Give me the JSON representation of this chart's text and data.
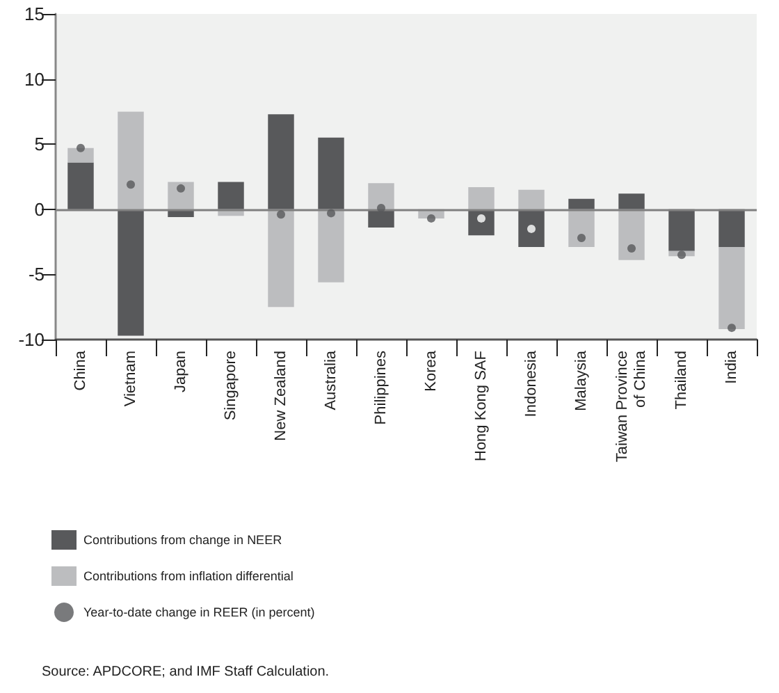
{
  "chart_data": {
    "type": "bar",
    "stacked": true,
    "categories": [
      "China",
      "Vietnam",
      "Japan",
      "Singapore",
      "New Zealand",
      "Australia",
      "Philippines",
      "Korea",
      "Hong Kong SAF",
      "Indonesia",
      "Malaysia",
      "Taiwan Province\nof China",
      "Thailand",
      "India"
    ],
    "series": [
      {
        "name": "Contributions from change in NEER",
        "color": "#58595b",
        "values": [
          3.6,
          -9.7,
          -0.6,
          2.1,
          7.3,
          5.5,
          -1.4,
          0,
          -2.0,
          -2.9,
          0.8,
          1.2,
          -3.2,
          -2.9
        ]
      },
      {
        "name": "Contributions from inflation differential",
        "color": "#bcbdbf",
        "values": [
          1.1,
          7.5,
          2.1,
          -0.5,
          -7.5,
          -5.6,
          2.0,
          -0.7,
          1.7,
          1.5,
          -2.9,
          -3.9,
          -0.4,
          -6.3
        ]
      },
      {
        "name": "Year-to-date change in REER (in percent)",
        "type": "scatter",
        "color": "#58595b",
        "colors": [
          "#58595b",
          "#58595b",
          "#58595b",
          null,
          "#58595b",
          "#58595b",
          "#58595b",
          "#58595b",
          "#ffffff",
          "#ffffff",
          "#58595b",
          "#58595b",
          "#58595b",
          "#58595b"
        ],
        "values": [
          4.7,
          1.9,
          1.6,
          null,
          -0.4,
          -0.3,
          0.1,
          -0.7,
          -0.7,
          -1.5,
          -2.2,
          -3.0,
          -3.5,
          -9.1
        ]
      }
    ],
    "ylim": [
      -10,
      15
    ],
    "yticks": [
      -10,
      -5,
      0,
      5,
      10,
      15
    ],
    "grid": false,
    "legend": "bottom left",
    "marker": "circle",
    "ref_lines": [
      {
        "axis": "y",
        "value": 0,
        "color": "#808080"
      }
    ],
    "annotations": [
      "Source: APDCORE; and IMF Staff Calculation."
    ]
  }
}
